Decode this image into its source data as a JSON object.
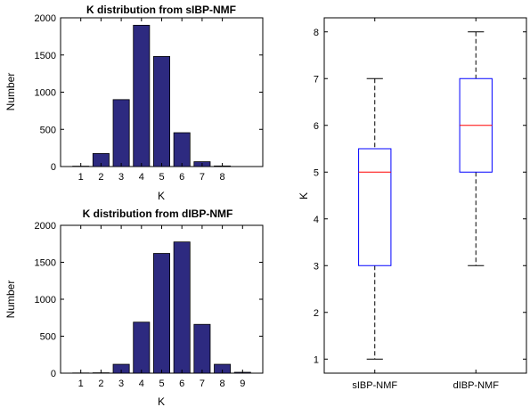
{
  "chart_data": [
    {
      "type": "bar",
      "title": "K distribution from sIBP-NMF",
      "xlabel": "K",
      "ylabel": "Number",
      "categories": [
        "1",
        "2",
        "3",
        "4",
        "5",
        "6",
        "7",
        "8"
      ],
      "values": [
        5,
        175,
        900,
        1900,
        1480,
        455,
        65,
        8
      ],
      "xlim": [
        0,
        10
      ],
      "ylim": [
        0,
        2000
      ],
      "yticks": [
        0,
        500,
        1000,
        1500,
        2000
      ],
      "bar_color": "#2d2a80",
      "grid": false
    },
    {
      "type": "bar",
      "title": "K distribution from dIBP-NMF",
      "xlabel": "K",
      "ylabel": "Number",
      "categories": [
        "1",
        "2",
        "3",
        "4",
        "5",
        "6",
        "7",
        "8",
        "9"
      ],
      "values": [
        3,
        5,
        120,
        690,
        1620,
        1775,
        660,
        120,
        12
      ],
      "xlim": [
        0,
        10
      ],
      "ylim": [
        0,
        2000
      ],
      "yticks": [
        0,
        500,
        1000,
        1500,
        2000
      ],
      "bar_color": "#2d2a80",
      "grid": false
    },
    {
      "type": "box",
      "title": "",
      "xlabel": "",
      "ylabel": "K",
      "categories": [
        "sIBP-NMF",
        "dIBP-NMF"
      ],
      "boxes": [
        {
          "name": "sIBP-NMF",
          "whisker_low": 1,
          "q1": 3,
          "median": 5,
          "q3": 5.5,
          "whisker_high": 7
        },
        {
          "name": "dIBP-NMF",
          "whisker_low": 3,
          "q1": 5,
          "median": 6,
          "q3": 7,
          "whisker_high": 8
        }
      ],
      "ylim": [
        0.7,
        8.3
      ],
      "yticks": [
        1,
        2,
        3,
        4,
        5,
        6,
        7,
        8
      ],
      "box_color": "#0000ff",
      "median_color": "#ff0000",
      "grid": false
    }
  ]
}
